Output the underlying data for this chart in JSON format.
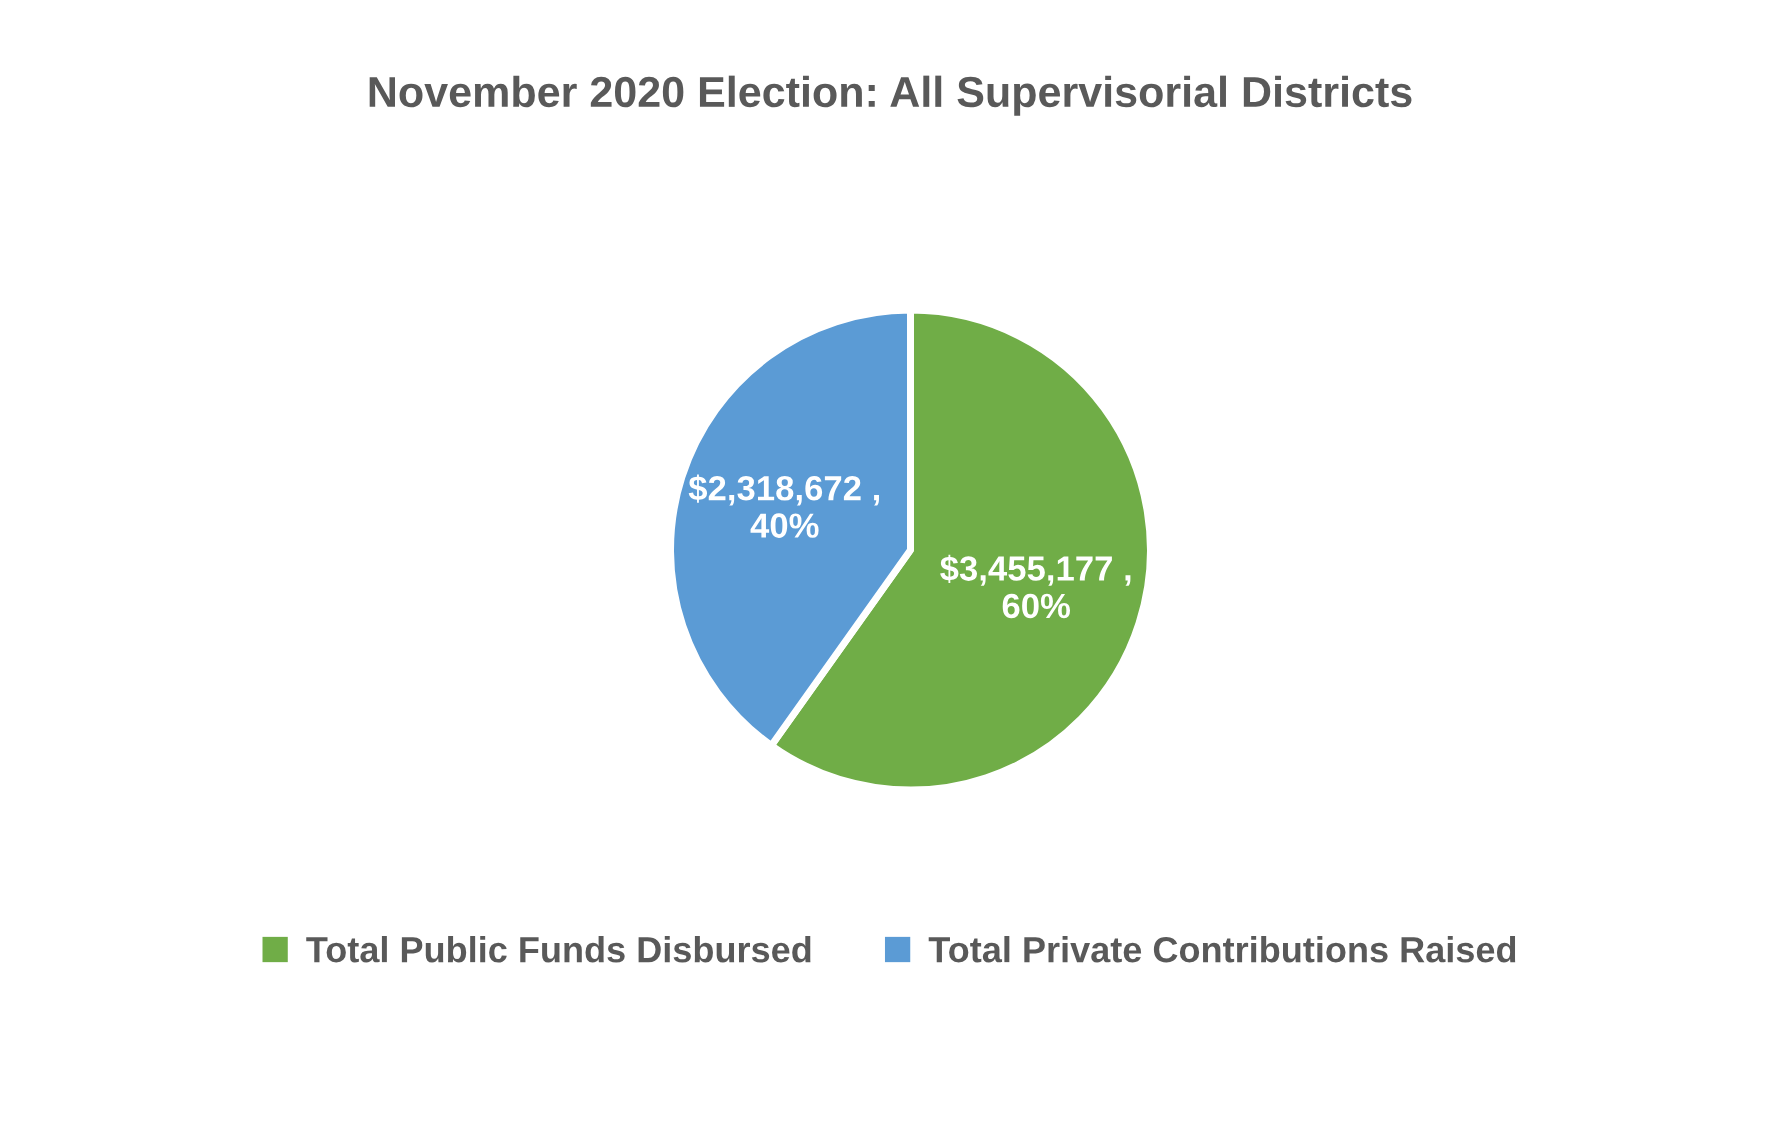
{
  "chart_data": {
    "type": "pie",
    "title": "November 2020 Election: All Supervisorial Districts",
    "categories": [
      "Total Public Funds Disbursed",
      "Total Private Contributions Raised"
    ],
    "values": [
      3455177,
      2318672
    ],
    "colors": [
      "#70ad47",
      "#5b9bd5"
    ],
    "value_labels": [
      "$3,455,177 ,\n60%",
      "$2,318,672 ,\n40%"
    ],
    "legend": "bottom"
  }
}
